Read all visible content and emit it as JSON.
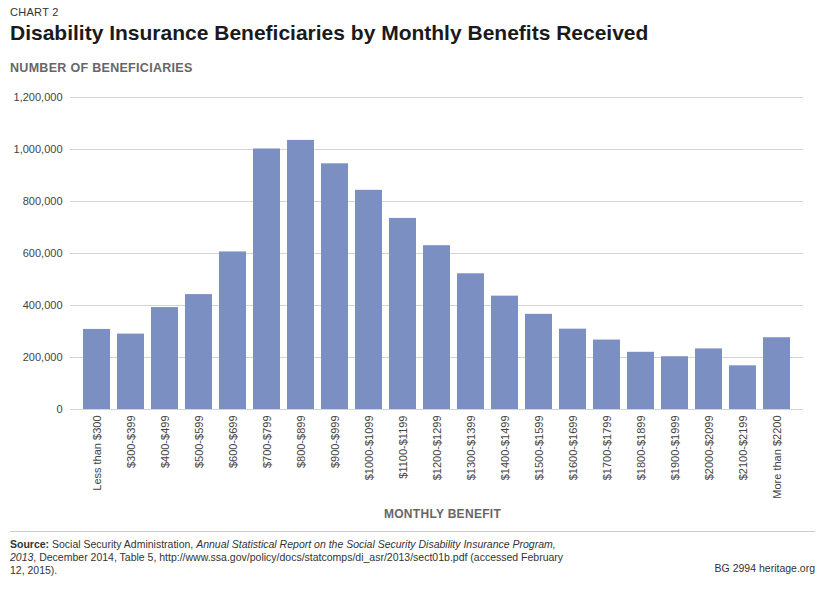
{
  "chart_data": {
    "type": "bar",
    "chart_label": "CHART 2",
    "title": "Disability Insurance Beneficiaries by Monthly Benefits Received",
    "ylabel": "NUMBER OF BENEFICIARIES",
    "xlabel": "MONTHLY BENEFIT",
    "categories": [
      "Less than $300",
      "$300-$399",
      "$400-$499",
      "$500-$599",
      "$600-$699",
      "$700-$799",
      "$800-$899",
      "$900-$999",
      "$1000-$1099",
      "$1100-$1199",
      "$1200-$1299",
      "$1300-$1399",
      "$1400-$1499",
      "$1500-$1599",
      "$1600-$1699",
      "$1700-$1799",
      "$1800-$1899",
      "$1900-$1999",
      "$2000-$2099",
      "$2100-$2199",
      "More than $2200"
    ],
    "values": [
      308000,
      290000,
      392000,
      442000,
      606000,
      1002000,
      1035000,
      945000,
      843000,
      735000,
      630000,
      522000,
      436000,
      366000,
      309000,
      267000,
      220000,
      203000,
      233000,
      168000,
      276000
    ],
    "color": "#7b8fc2",
    "ylim": [
      0,
      1200000
    ],
    "yticks": [
      0,
      {
        "value": 200000,
        "label": "200,000"
      },
      {
        "value": 400000,
        "label": "400,000"
      },
      {
        "value": 600000,
        "label": "600,000"
      },
      {
        "value": 800000,
        "label": "800,000"
      },
      {
        "value": 1000000,
        "label": "1,000,000"
      },
      {
        "value": 1200000,
        "label": "1,200,000"
      }
    ],
    "grid": true,
    "source": {
      "label": "Source:",
      "text": " Social Security Administration, ",
      "italic": "Annual Statistical Report on the Social Security Disability Insurance Program, 2013",
      "rest": ", December 2014, Table 5, http://www.ssa.gov/policy/docs/statcomps/di_asr/2013/sect01b.pdf (accessed February 12, 2015)."
    },
    "credits": [
      "BG 2994",
      "heritage.org"
    ]
  }
}
